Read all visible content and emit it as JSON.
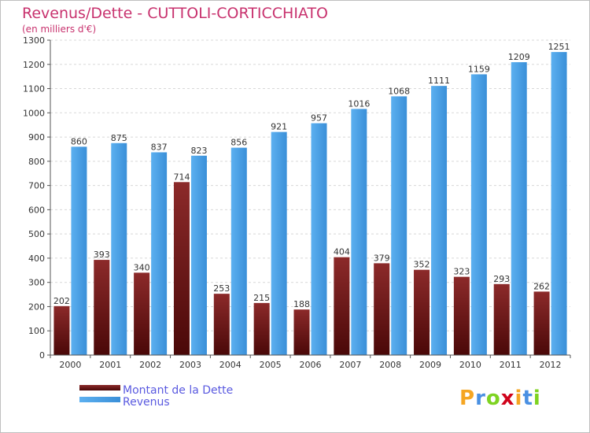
{
  "title": "Revenus/Dette - CUTTOLI-CORTICCHIATO",
  "subtitle": "(en milliers d'€)",
  "logo_text": "Proxiti",
  "colors": {
    "title": "#c8326e",
    "debt_top": "#8c2a2a",
    "debt_bottom": "#4a0808",
    "revenue_top": "#5cb0f0",
    "revenue_bottom": "#3a8fd8",
    "legend_text": "#5a5ae0"
  },
  "chart_data": {
    "type": "bar",
    "title": "Revenus/Dette - CUTTOLI-CORTICCHIATO",
    "subtitle": "(en milliers d'€)",
    "categories": [
      "2000",
      "2001",
      "2002",
      "2003",
      "2004",
      "2005",
      "2006",
      "2007",
      "2008",
      "2009",
      "2010",
      "2011",
      "2012"
    ],
    "series": [
      {
        "name": "Montant de la Dette",
        "values": [
          202,
          393,
          340,
          714,
          253,
          215,
          188,
          404,
          379,
          352,
          323,
          293,
          262
        ]
      },
      {
        "name": "Revenus",
        "values": [
          860,
          875,
          837,
          823,
          856,
          921,
          957,
          1016,
          1068,
          1111,
          1159,
          1209,
          1251
        ]
      }
    ],
    "ylim": [
      0,
      1300
    ],
    "yticks": [
      0,
      100,
      200,
      300,
      400,
      500,
      600,
      700,
      800,
      900,
      1000,
      1100,
      1200,
      1300
    ],
    "grid": true,
    "legend": "bottom-left"
  }
}
